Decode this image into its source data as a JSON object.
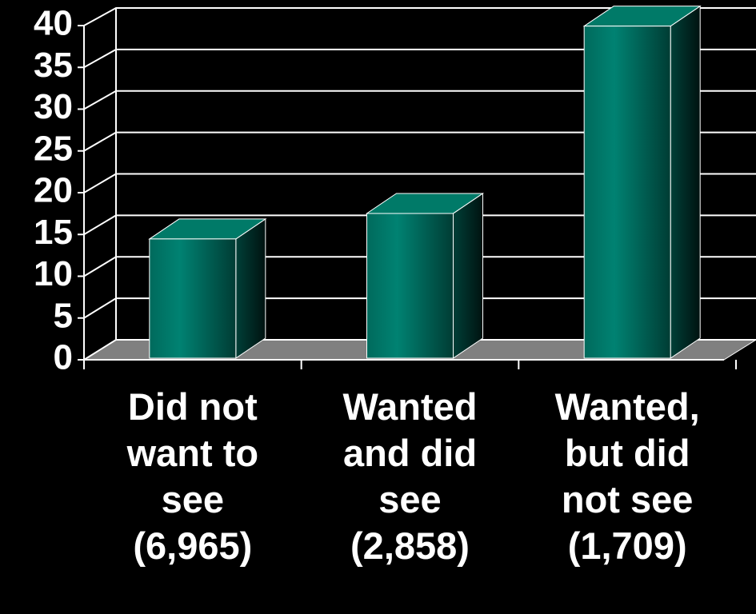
{
  "chart_data": {
    "type": "bar3d",
    "categories": [
      "Did not\nwant to\nsee\n(6,965)",
      "Wanted\nand did\nsee\n(2,858)",
      "Wanted,\nbut did\nnot see\n(1,709)"
    ],
    "values": [
      14,
      17,
      39
    ],
    "color": "#007a68",
    "ylim": [
      0,
      40
    ],
    "yticks": [
      0,
      5,
      10,
      15,
      20,
      25,
      30,
      35,
      40
    ],
    "grid": true
  }
}
